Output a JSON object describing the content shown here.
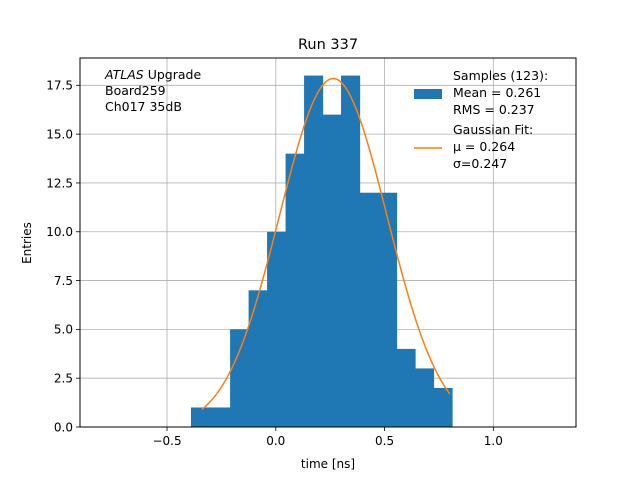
{
  "chart_data": {
    "type": "bar",
    "title": "Run 337",
    "xlabel": "time [ns]",
    "ylabel": "Entries",
    "xlim": [
      -0.9,
      1.38
    ],
    "ylim": [
      0,
      18.9
    ],
    "grid": true,
    "xticks": [
      -0.5,
      0.0,
      0.5,
      1.0
    ],
    "xtick_labels": [
      "−0.5",
      "0.0",
      "0.5",
      "1.0"
    ],
    "yticks": [
      0.0,
      2.5,
      5.0,
      7.5,
      10.0,
      12.5,
      15.0,
      17.5
    ],
    "ytick_labels": [
      "0.0",
      "2.5",
      "5.0",
      "7.5",
      "10.0",
      "12.5",
      "15.0",
      "17.5"
    ],
    "histogram": {
      "bin_edges": [
        -0.39,
        -0.3,
        -0.21,
        -0.125,
        -0.04,
        0.045,
        0.13,
        0.215,
        0.3,
        0.385,
        0.47,
        0.555,
        0.64,
        0.725,
        0.81,
        0.85
      ],
      "counts": [
        1,
        1,
        5,
        7,
        10,
        14,
        18,
        16,
        18,
        12,
        12,
        4,
        3,
        2,
        0
      ],
      "color": "#1f77b4"
    },
    "fit": {
      "type": "gaussian",
      "mu": 0.264,
      "sigma": 0.247,
      "amplitude": 17.85,
      "x_range": [
        -0.34,
        0.8
      ],
      "color": "#ff7f0e"
    },
    "legend": {
      "position": "top-right",
      "entries": [
        {
          "lines": [
            "Samples (123):",
            " Mean = 0.261",
            " RMS = 0.237"
          ],
          "marker": "patch",
          "color": "#1f77b4"
        },
        {
          "lines": [
            "Gaussian Fit:",
            " μ = 0.264",
            " σ=0.247"
          ],
          "marker": "line",
          "color": "#ff7f0e"
        }
      ]
    },
    "annotation": {
      "position": "top-left",
      "lines": [
        {
          "italic": "ATLAS",
          "text": " Upgrade"
        },
        {
          "italic": "",
          "text": " Board259"
        },
        {
          "italic": "",
          "text": " Ch017 35dB"
        }
      ]
    }
  }
}
